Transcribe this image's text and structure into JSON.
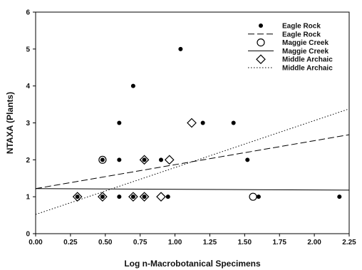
{
  "chart_data": {
    "type": "scatter",
    "title": "",
    "xlabel": "Log n-Macrobotanical Specimens",
    "ylabel": "NTAXA (Plants)",
    "xlim": [
      0,
      2.25
    ],
    "ylim": [
      0,
      6
    ],
    "x_ticks": [
      "0.00",
      "0.25",
      "0.50",
      "0.75",
      "1.00",
      "1.25",
      "1.50",
      "1.75",
      "2.00",
      "2.25"
    ],
    "y_ticks": [
      "0",
      "1",
      "2",
      "3",
      "4",
      "5",
      "6"
    ],
    "grid": false,
    "legend_position": "top-right",
    "series": [
      {
        "name": "Eagle Rock",
        "kind": "points",
        "marker": "filled-circle",
        "color": "#000000",
        "points": [
          [
            0.3,
            1
          ],
          [
            0.48,
            1
          ],
          [
            0.6,
            1
          ],
          [
            0.7,
            1
          ],
          [
            0.78,
            1
          ],
          [
            0.95,
            1
          ],
          [
            1.6,
            1
          ],
          [
            2.18,
            1
          ],
          [
            0.48,
            2
          ],
          [
            0.6,
            2
          ],
          [
            0.78,
            2
          ],
          [
            0.9,
            2
          ],
          [
            1.52,
            2
          ],
          [
            0.6,
            3
          ],
          [
            1.2,
            3
          ],
          [
            1.42,
            3
          ],
          [
            0.7,
            4
          ],
          [
            1.04,
            5
          ]
        ]
      },
      {
        "name": "Eagle Rock",
        "kind": "line",
        "dash": "dashed",
        "color": "#000000",
        "line": [
          [
            0,
            1.22
          ],
          [
            2.25,
            2.68
          ]
        ]
      },
      {
        "name": "Maggie Creek",
        "kind": "points",
        "marker": "open-circle",
        "color": "#000000",
        "points": [
          [
            0.48,
            2
          ],
          [
            1.56,
            1
          ]
        ]
      },
      {
        "name": "Maggie Creek",
        "kind": "line",
        "dash": "solid",
        "color": "#000000",
        "line": [
          [
            0,
            1.22
          ],
          [
            2.25,
            1.18
          ]
        ]
      },
      {
        "name": "Middle Archaic",
        "kind": "points",
        "marker": "open-diamond",
        "color": "#000000",
        "points": [
          [
            0.3,
            1
          ],
          [
            0.48,
            1
          ],
          [
            0.7,
            1
          ],
          [
            0.78,
            1
          ],
          [
            0.9,
            1
          ],
          [
            0.78,
            2
          ],
          [
            0.96,
            2
          ],
          [
            1.12,
            3
          ]
        ]
      },
      {
        "name": "Middle Archaic",
        "kind": "line",
        "dash": "dotted",
        "color": "#000000",
        "line": [
          [
            0,
            0.52
          ],
          [
            2.25,
            3.38
          ]
        ]
      }
    ]
  }
}
